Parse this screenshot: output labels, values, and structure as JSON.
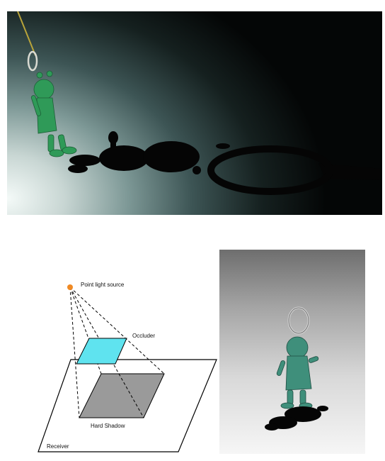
{
  "diagram": {
    "labels": {
      "point_light": "Point light source",
      "occluder": "Occluder",
      "hard_shadow": "Hard Shadow",
      "receiver": "Receiver"
    },
    "colors": {
      "light": "#f08a24",
      "occluder": "#5fe3ef",
      "shadow": "#9a9a9a"
    }
  }
}
